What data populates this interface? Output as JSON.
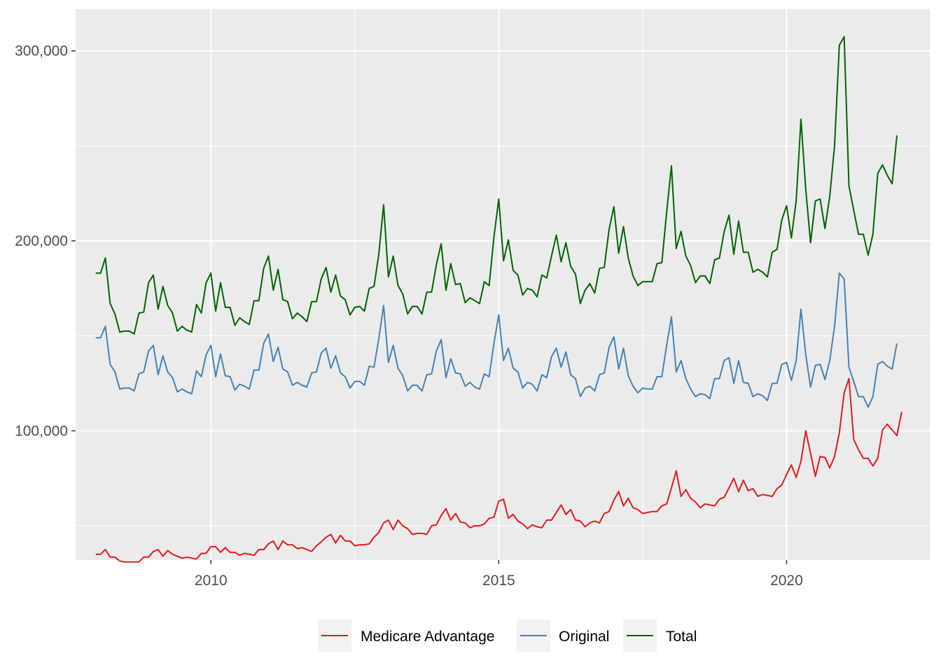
{
  "chart_data": {
    "type": "line",
    "title": "",
    "xlabel": "",
    "ylabel": "",
    "xlim": [
      2007.65,
      2022.5
    ],
    "ylim": [
      32000,
      322000
    ],
    "x_ticks": [
      2010,
      2015,
      2020
    ],
    "x_tick_labels": [
      "2010",
      "2015",
      "2020"
    ],
    "y_ticks": [
      100000,
      200000,
      300000
    ],
    "y_tick_labels": [
      "100,000",
      "200,000",
      "300,000"
    ],
    "grid": true,
    "legend_position": "bottom",
    "x_start": 2008.0,
    "x_step_months": 1,
    "series": [
      {
        "name": "Medicare Advantage",
        "color": "#e41a1c",
        "values": [
          35000,
          35000,
          37500,
          33500,
          33500,
          31500,
          31000,
          31000,
          31000,
          31000,
          33500,
          33500,
          36500,
          37500,
          34000,
          37000,
          35000,
          34000,
          33000,
          33500,
          33000,
          32500,
          35500,
          35500,
          39000,
          39000,
          36000,
          38500,
          36000,
          36000,
          34500,
          35500,
          35000,
          34500,
          37500,
          37500,
          40500,
          42000,
          37500,
          42000,
          40000,
          40000,
          38000,
          38500,
          37500,
          36500,
          39500,
          41500,
          44000,
          45500,
          41000,
          45000,
          42000,
          42000,
          39500,
          40000,
          40000,
          40500,
          44000,
          46500,
          51500,
          53000,
          48000,
          53000,
          50000,
          48500,
          45500,
          46000,
          46000,
          45500,
          50000,
          50500,
          55500,
          59000,
          53000,
          56500,
          52000,
          51500,
          49000,
          50000,
          50000,
          51000,
          54000,
          54500,
          63000,
          64000,
          54000,
          56000,
          52500,
          51000,
          48500,
          50500,
          49500,
          49000,
          53000,
          53000,
          57000,
          61000,
          56000,
          58500,
          53000,
          52500,
          49500,
          51500,
          52500,
          51500,
          56500,
          57500,
          63500,
          68000,
          60500,
          64500,
          59500,
          58500,
          56500,
          57000,
          57500,
          57500,
          60500,
          61500,
          70000,
          79000,
          65500,
          69000,
          64500,
          62500,
          59500,
          61500,
          61000,
          60500,
          64000,
          65000,
          70000,
          75000,
          68000,
          74000,
          68500,
          69500,
          65500,
          66500,
          66000,
          65500,
          69500,
          71500,
          77000,
          82000,
          75500,
          84000,
          100000,
          88000,
          76000,
          86500,
          86000,
          80500,
          86500,
          99000,
          120000,
          127500,
          95500,
          90000,
          85500,
          85500,
          81500,
          85500,
          100500,
          103500,
          100500,
          97500,
          110000
        ]
      },
      {
        "name": "Original",
        "color": "#4682b4",
        "values": [
          149000,
          149000,
          155000,
          135000,
          131000,
          122000,
          122500,
          122500,
          121000,
          130000,
          131000,
          142000,
          145000,
          129500,
          139500,
          131000,
          128000,
          120500,
          122000,
          120500,
          119500,
          131500,
          128500,
          140000,
          145000,
          128500,
          140500,
          129000,
          128500,
          121500,
          124500,
          123500,
          122000,
          132000,
          132000,
          146000,
          151000,
          136500,
          144000,
          132500,
          131000,
          124000,
          125500,
          124000,
          123000,
          130500,
          131000,
          141000,
          143500,
          133000,
          139500,
          130500,
          128500,
          122500,
          126000,
          126000,
          124000,
          134000,
          133500,
          148500,
          166000,
          136000,
          145000,
          133000,
          129000,
          121000,
          124000,
          124000,
          121000,
          129500,
          130000,
          142000,
          148000,
          128000,
          138000,
          130500,
          130000,
          123500,
          125500,
          123000,
          122000,
          130000,
          128500,
          146000,
          161000,
          137000,
          143500,
          133000,
          131000,
          122500,
          125500,
          124500,
          121000,
          129500,
          128000,
          139000,
          143500,
          133500,
          141500,
          129500,
          127500,
          118000,
          122500,
          123500,
          121000,
          129500,
          130500,
          144000,
          149500,
          132500,
          143500,
          129000,
          123500,
          120000,
          122500,
          122000,
          122000,
          128500,
          128500,
          145000,
          160000,
          131000,
          137000,
          127500,
          122000,
          118000,
          119500,
          119000,
          117000,
          127500,
          127500,
          137000,
          138500,
          125000,
          137000,
          125500,
          125000,
          118000,
          119500,
          118500,
          116000,
          125000,
          125000,
          135000,
          136000,
          126500,
          137000,
          164000,
          140000,
          123000,
          134500,
          135000,
          127000,
          137000,
          155000,
          183000,
          180000,
          133500,
          126000,
          118000,
          118000,
          112500,
          118000,
          135000,
          136500,
          134000,
          132500,
          146000
        ]
      },
      {
        "name": "Total",
        "color": "#006400",
        "values": [
          183000,
          183000,
          191000,
          167000,
          161500,
          152000,
          152500,
          152500,
          151000,
          162000,
          162500,
          178000,
          182000,
          164000,
          176000,
          166000,
          162000,
          152500,
          155000,
          153000,
          152000,
          166500,
          162000,
          178000,
          183000,
          163000,
          178000,
          165000,
          165000,
          155500,
          159500,
          157500,
          156000,
          168500,
          168500,
          185500,
          192000,
          174000,
          185000,
          169000,
          168000,
          159000,
          162000,
          160000,
          157500,
          168000,
          168000,
          180000,
          186000,
          173000,
          182000,
          171000,
          169000,
          161000,
          165000,
          165500,
          163000,
          175000,
          176000,
          193000,
          219000,
          181000,
          192000,
          176500,
          172000,
          161500,
          165500,
          165500,
          161500,
          173000,
          173000,
          187500,
          198500,
          174000,
          188000,
          177000,
          177500,
          167500,
          170000,
          168500,
          167000,
          178500,
          176500,
          202000,
          222000,
          189500,
          200500,
          184500,
          182000,
          171500,
          175000,
          174000,
          170500,
          182000,
          180500,
          192000,
          203000,
          189000,
          199000,
          186500,
          182500,
          167000,
          174000,
          177500,
          172500,
          185500,
          186000,
          206000,
          218000,
          193500,
          207500,
          191000,
          181500,
          176500,
          178500,
          178500,
          178500,
          188000,
          188500,
          215000,
          239500,
          196000,
          205000,
          192000,
          187000,
          178000,
          181500,
          181500,
          177500,
          190000,
          191000,
          205000,
          213500,
          193000,
          210500,
          194000,
          194000,
          183500,
          185000,
          183500,
          181000,
          194000,
          195500,
          211000,
          218500,
          201500,
          221000,
          264000,
          227000,
          199000,
          221000,
          222000,
          206500,
          223500,
          250000,
          303000,
          307500,
          229000,
          216000,
          203500,
          203500,
          192500,
          203500,
          235500,
          240000,
          234500,
          230000,
          255500
        ]
      }
    ]
  }
}
